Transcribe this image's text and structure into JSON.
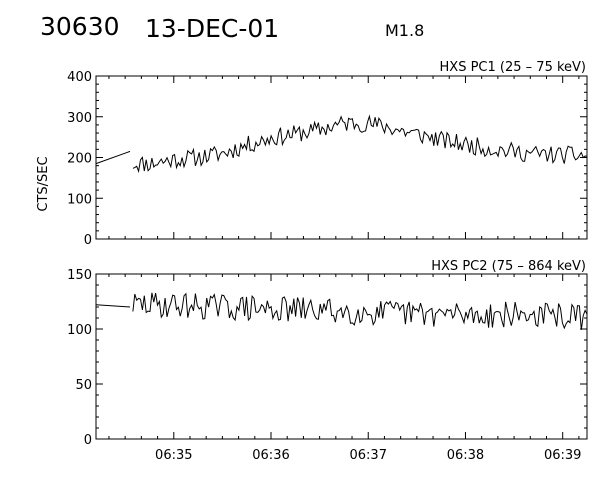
{
  "header": {
    "event_number": "30630",
    "date": "13-DEC-01",
    "flare_class": "M1.8"
  },
  "chart_data": [
    {
      "type": "line",
      "title": "HXS PC1 (25 – 75 keV)",
      "ylabel": "CTS/SEC",
      "xlabel": "",
      "x_tick_labels": [],
      "y_ticks": [
        0,
        100,
        200,
        300,
        400
      ],
      "ylim": [
        0,
        400
      ],
      "xlim_minutes": [
        34.2,
        39.25
      ],
      "grid": false,
      "series": [
        {
          "name": "",
          "gap_segment": {
            "x": [
              34.2,
              34.55
            ],
            "y": [
              185,
              215
            ]
          },
          "anchors": [
            [
              34.58,
              185
            ],
            [
              34.75,
              185
            ],
            [
              35.0,
              195
            ],
            [
              35.25,
              200
            ],
            [
              35.5,
              210
            ],
            [
              35.75,
              230
            ],
            [
              36.0,
              248
            ],
            [
              36.25,
              258
            ],
            [
              36.5,
              268
            ],
            [
              36.7,
              282
            ],
            [
              36.85,
              285
            ],
            [
              37.0,
              283
            ],
            [
              37.2,
              275
            ],
            [
              37.4,
              262
            ],
            [
              37.6,
              252
            ],
            [
              37.8,
              240
            ],
            [
              38.0,
              232
            ],
            [
              38.25,
              222
            ],
            [
              38.5,
              214
            ],
            [
              38.75,
              208
            ],
            [
              39.0,
              206
            ],
            [
              39.25,
              205
            ]
          ],
          "noise_amplitude": 22,
          "sample_count": 240
        }
      ]
    },
    {
      "type": "line",
      "title": "HXS PC2 (75 – 864 keV)",
      "ylabel": "",
      "xlabel": "",
      "x_tick_labels": [
        "06:35",
        "06:36",
        "06:37",
        "06:38",
        "06:39"
      ],
      "x_tick_values": [
        35,
        36,
        37,
        38,
        39
      ],
      "y_ticks": [
        0,
        50,
        100,
        150
      ],
      "ylim": [
        0,
        150
      ],
      "xlim_minutes": [
        34.2,
        39.25
      ],
      "grid": false,
      "series": [
        {
          "name": "",
          "gap_segment": {
            "x": [
              34.2,
              34.55
            ],
            "y": [
              122,
              120
            ]
          },
          "anchors": [
            [
              34.58,
              122
            ],
            [
              35.0,
              122
            ],
            [
              35.5,
              120
            ],
            [
              36.0,
              118
            ],
            [
              36.5,
              117
            ],
            [
              37.0,
              115
            ],
            [
              37.5,
              114
            ],
            [
              38.0,
              113
            ],
            [
              38.5,
              113
            ],
            [
              39.0,
              112
            ],
            [
              39.25,
              110
            ]
          ],
          "noise_amplitude": 12,
          "sample_count": 240
        }
      ]
    }
  ]
}
